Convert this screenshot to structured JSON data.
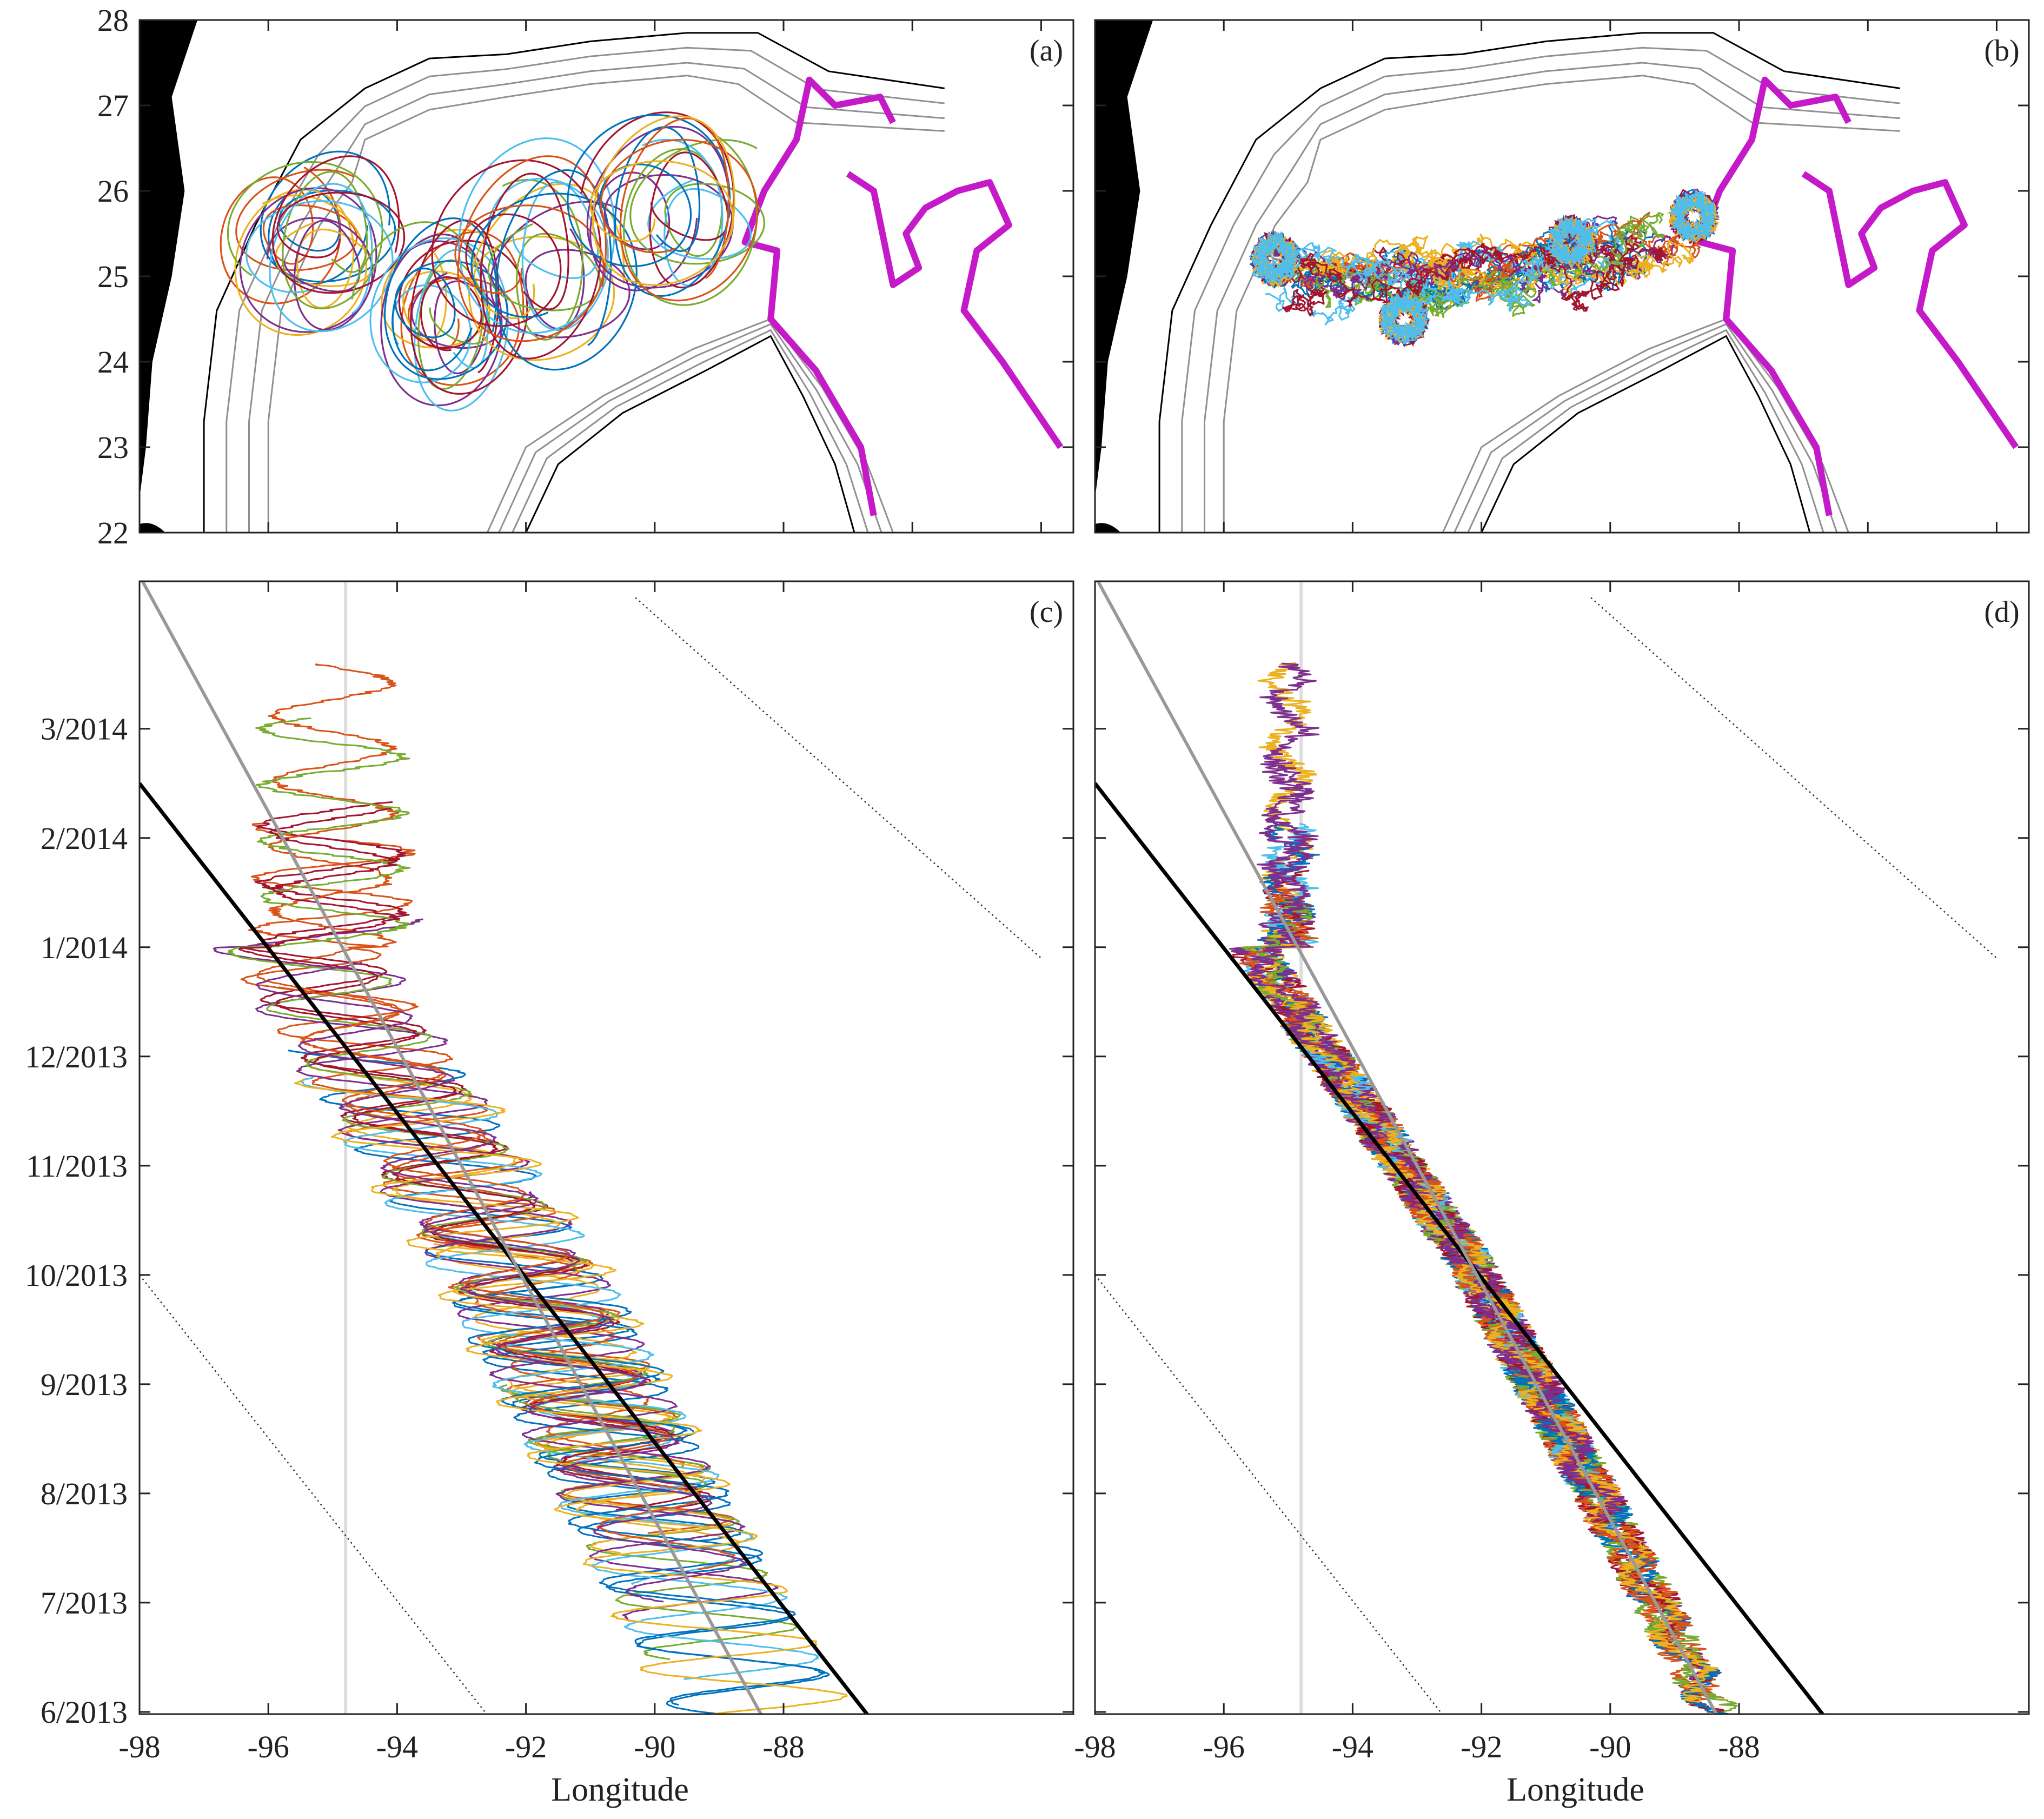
{
  "figure": {
    "xlabel": "Longitude",
    "colors": {
      "trajectories": [
        "#0072BD",
        "#D95319",
        "#EDB120",
        "#7E2F8E",
        "#77AC30",
        "#4DBEEE",
        "#A2142F"
      ],
      "magenta": "#C41AC8",
      "gray_contour": "#909090",
      "land": "#000000",
      "light_vertical": "#DDDDDD"
    }
  },
  "chart_data": [
    {
      "panel": "a",
      "label": "(a)",
      "type": "line",
      "xlim": [
        -98,
        -83.5
      ],
      "ylim": [
        22,
        28
      ],
      "x_ticks": [
        -96,
        -94,
        -92,
        -90,
        -88,
        -86,
        -84
      ],
      "y_ticks": [
        22,
        23,
        24,
        25,
        26,
        27,
        28
      ],
      "y_tick_labels": [
        "22",
        "23",
        "24",
        "25",
        "26",
        "27",
        "28"
      ],
      "grid": false,
      "description_kind": "trajectory map with looping float tracks",
      "eddy_centers": [
        {
          "lon": -95.0,
          "lat": 25.3,
          "r_lon": 1.1,
          "r_lat": 0.85
        },
        {
          "lon": -93.0,
          "lat": 24.7,
          "r_lon": 1.0,
          "r_lat": 1.0
        },
        {
          "lon": -91.3,
          "lat": 25.2,
          "r_lon": 1.25,
          "r_lat": 1.15
        },
        {
          "lon": -89.3,
          "lat": 25.6,
          "r_lon": 1.2,
          "r_lat": 1.05
        }
      ]
    },
    {
      "panel": "b",
      "label": "(b)",
      "type": "line",
      "xlim": [
        -98,
        -83.5
      ],
      "ylim": [
        22,
        28
      ],
      "x_ticks": [
        -96,
        -94,
        -92,
        -90,
        -88,
        -86,
        -84
      ],
      "y_ticks": [
        22,
        23,
        24,
        25,
        26,
        27,
        28
      ],
      "grid": false,
      "description_kind": "trajectory map with small-scale tracks",
      "clusters": [
        {
          "lon": -95.2,
          "lat": 25.2
        },
        {
          "lon": -93.2,
          "lat": 24.5
        },
        {
          "lon": -90.6,
          "lat": 25.4
        },
        {
          "lon": -88.7,
          "lat": 25.7
        }
      ]
    },
    {
      "panel": "c",
      "label": "(c)",
      "type": "line",
      "xlabel": "Longitude",
      "xlim": [
        -98,
        -83.5
      ],
      "x_ticks": [
        -98,
        -96,
        -94,
        -92,
        -90,
        -88
      ],
      "x_tick_labels": [
        "-98",
        "-96",
        "-94",
        "-92",
        "-90",
        "-88"
      ],
      "y_ticks": [
        0,
        1,
        2,
        3,
        4,
        5,
        6,
        7,
        8,
        9
      ],
      "y_tick_labels": [
        "6/2013",
        "7/2013",
        "8/2013",
        "9/2013",
        "10/2013",
        "11/2013",
        "12/2013",
        "1/2014",
        "2/2014",
        "3/2014"
      ],
      "ylim": [
        -0.02,
        10.35
      ],
      "black_line": {
        "lon_at_start": -86.2,
        "lon_at_end": -98.0,
        "start": -0.4,
        "end": 8.5
      },
      "gray_line": {
        "lon_at_start": -88.0,
        "lon_at_end": -98.0,
        "start": -0.4,
        "end": 10.4
      },
      "vertical_line_lon": -94.8,
      "dotted_lines": [
        {
          "lon_start": -98,
          "month_start": 4.0,
          "lon_end": -92.1,
          "month_end": -0.4
        },
        {
          "lon_start": -90.3,
          "month_start": 10.2,
          "lon_end": -84.0,
          "month_end": 6.9
        }
      ]
    },
    {
      "panel": "d",
      "label": "(d)",
      "type": "line",
      "xlabel": "Longitude",
      "xlim": [
        -98,
        -83.5
      ],
      "x_ticks": [
        -98,
        -96,
        -94,
        -92,
        -90,
        -88
      ],
      "x_tick_labels": [
        "-98",
        "-96",
        "-94",
        "-92",
        "-90",
        "-88"
      ],
      "y_ticks": [
        0,
        1,
        2,
        3,
        4,
        5,
        6,
        7,
        8,
        9
      ],
      "y_tick_labels": [],
      "ylim": [
        -0.02,
        10.35
      ],
      "black_line": {
        "lon_at_start": -86.2,
        "lon_at_end": -98.0,
        "start": -0.4,
        "end": 8.5
      },
      "gray_line": {
        "lon_at_start": -88.0,
        "lon_at_end": -98.0,
        "start": -0.4,
        "end": 10.4
      },
      "vertical_line_lon": -94.8,
      "dotted_lines": [
        {
          "lon_start": -98,
          "month_start": 4.0,
          "lon_end": -92.1,
          "month_end": -0.4
        },
        {
          "lon_start": -90.3,
          "month_start": 10.2,
          "lon_end": -84.0,
          "month_end": 6.9
        }
      ]
    }
  ]
}
